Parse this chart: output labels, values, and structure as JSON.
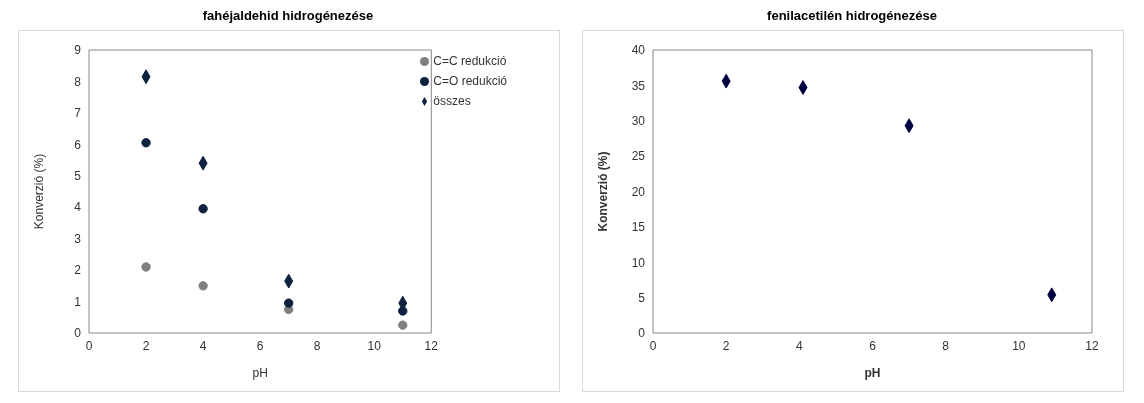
{
  "chart_data": [
    {
      "type": "scatter",
      "title": "fahéjaldehid hidrogénezése",
      "xlabel": "pH",
      "ylabel": "Konverzió (%)",
      "x": [
        2,
        4,
        7,
        11
      ],
      "xlim": [
        0,
        12
      ],
      "xticks": [
        0,
        2,
        4,
        6,
        8,
        10,
        12
      ],
      "ylim": [
        0,
        9
      ],
      "yticks": [
        0,
        1,
        2,
        3,
        4,
        5,
        6,
        7,
        8,
        9
      ],
      "grid": false,
      "legend": "top right",
      "series": [
        {
          "name": "C=C redukció",
          "color": "#808080",
          "marker": "circle",
          "values": [
            2.1,
            1.5,
            0.75,
            0.25
          ]
        },
        {
          "name": "C=O redukció",
          "color": "#0d2240",
          "marker": "circle",
          "values": [
            6.05,
            3.95,
            0.95,
            0.7
          ]
        },
        {
          "name": "összes",
          "color": "#0d2240",
          "marker": "diamond",
          "values": [
            8.15,
            5.4,
            1.65,
            0.95
          ]
        }
      ]
    },
    {
      "type": "scatter",
      "title": "fenilacetilén hidrogénezése",
      "xlabel": "pH",
      "ylabel": "Konverzió (%)",
      "x": [
        2,
        4.1,
        7,
        10.9
      ],
      "xlim": [
        0,
        12
      ],
      "xticks": [
        0,
        2,
        4,
        6,
        8,
        10,
        12
      ],
      "ylim": [
        0,
        40
      ],
      "yticks": [
        0,
        5,
        10,
        15,
        20,
        25,
        30,
        35,
        40
      ],
      "grid": false,
      "legend": false,
      "marker": "diamond",
      "series": [
        {
          "color": "#000040",
          "values": [
            35.6,
            34.7,
            29.3,
            5.4
          ]
        }
      ]
    }
  ]
}
